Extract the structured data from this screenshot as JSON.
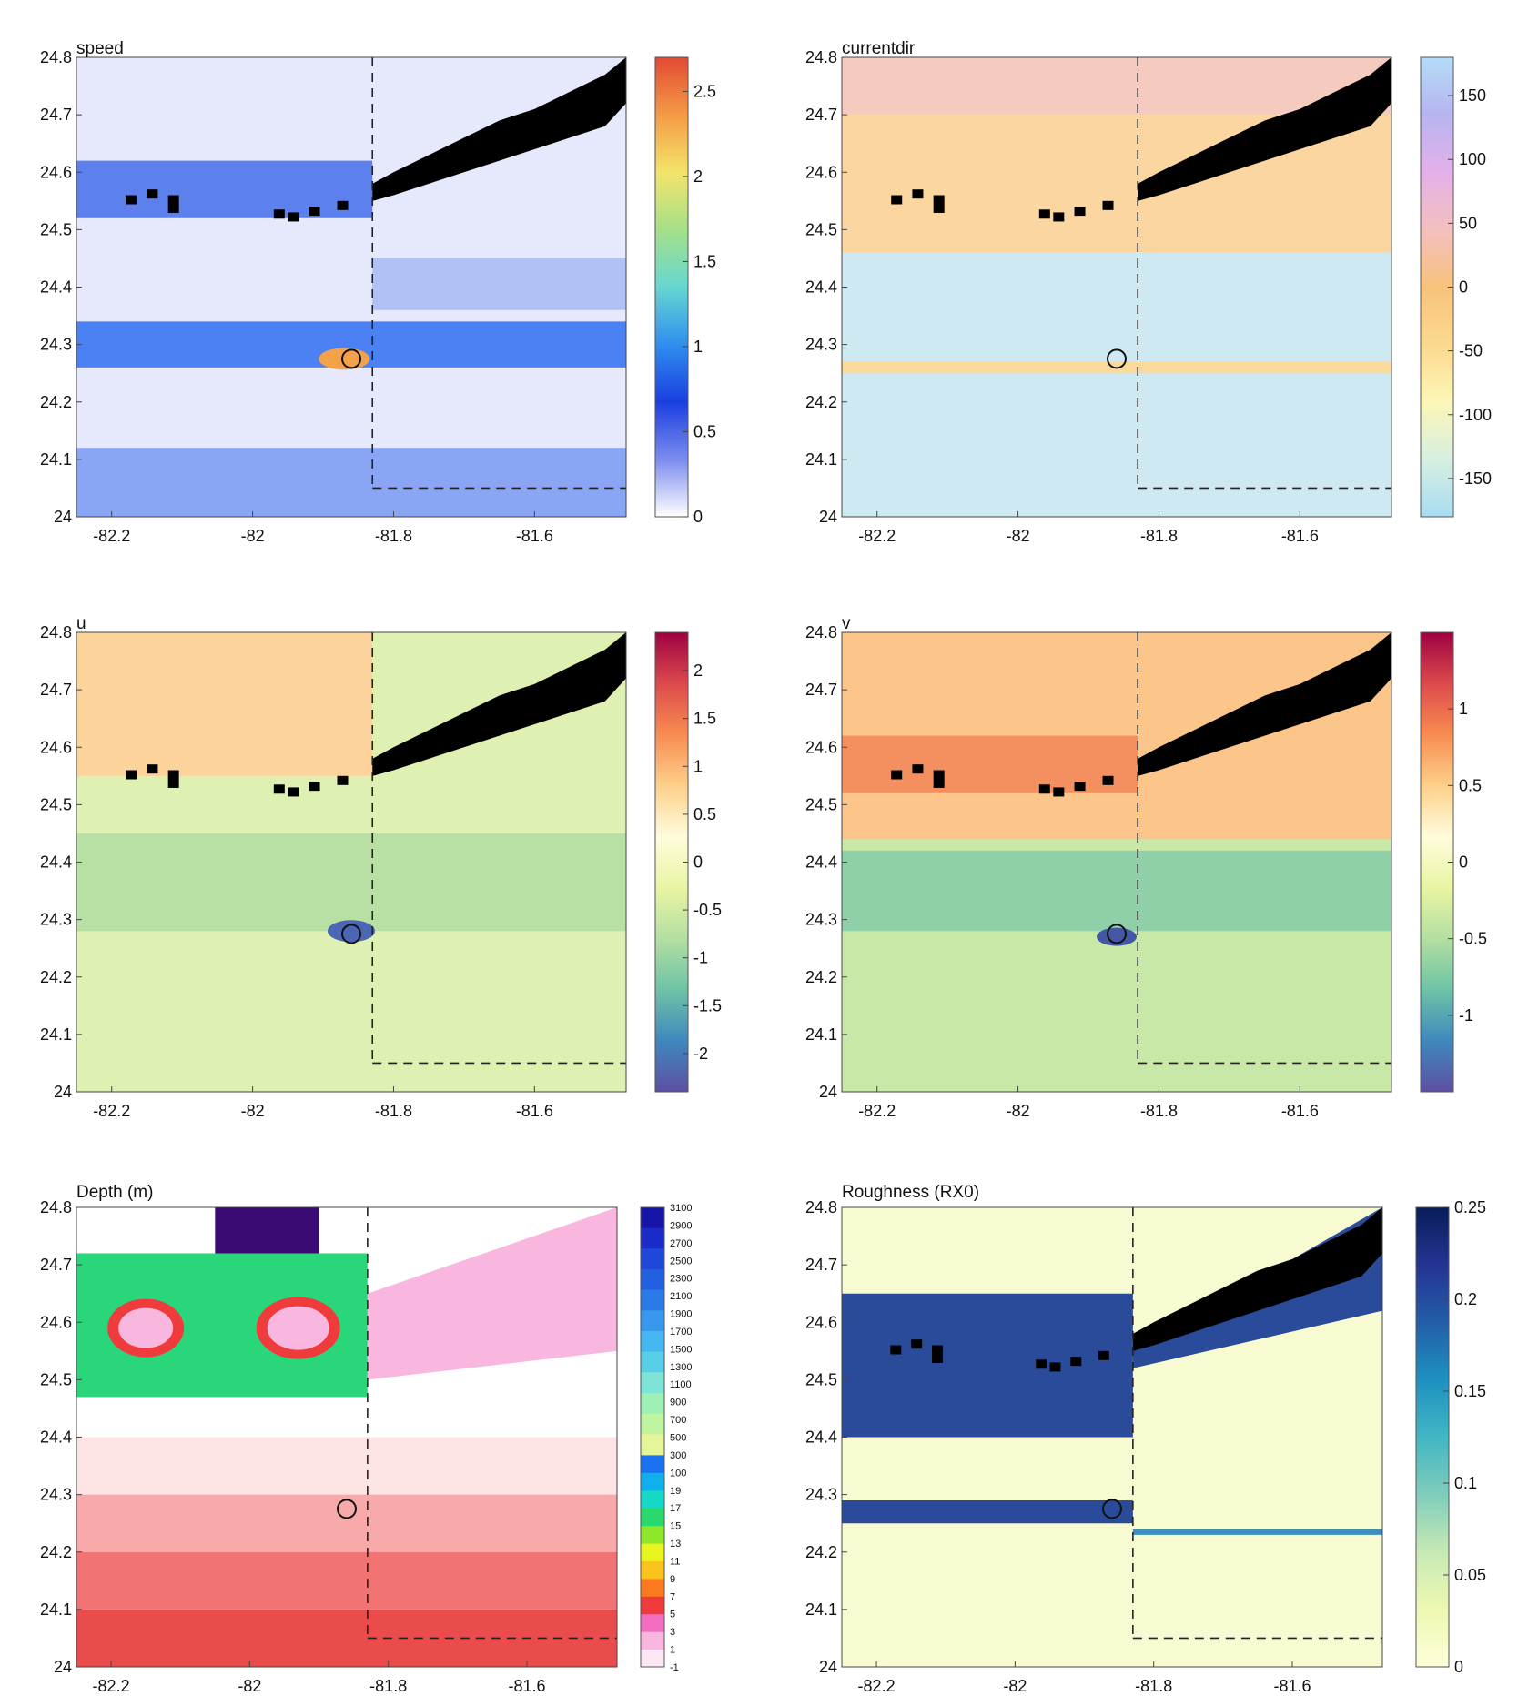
{
  "figure": {
    "x_ticks": [
      "-82.2",
      "-82",
      "-81.8",
      "-81.6"
    ],
    "x_tick_values": [
      -82.2,
      -82.0,
      -81.8,
      -81.6
    ],
    "y_ticks": [
      "24",
      "24.1",
      "24.2",
      "24.3",
      "24.4",
      "24.5",
      "24.6",
      "24.7",
      "24.8"
    ],
    "y_tick_values": [
      24.0,
      24.1,
      24.2,
      24.3,
      24.4,
      24.5,
      24.6,
      24.7,
      24.8
    ],
    "xlim": [
      -82.25,
      -81.47
    ],
    "ylim": [
      24.0,
      24.8
    ],
    "marker": {
      "lon": -81.86,
      "lat": 24.275,
      "shape": "circle"
    },
    "nest_boundary": {
      "lon": -81.83,
      "lat": 24.05,
      "style": "dashed"
    },
    "land_color": "#000000"
  },
  "chart_data": [
    {
      "type": "heatmap",
      "title": "speed",
      "colorbar": {
        "min": 0,
        "max": 2.7,
        "ticks": [
          "0",
          "0.5",
          "1",
          "1.5",
          "2",
          "2.5"
        ],
        "tick_values": [
          0,
          0.5,
          1,
          1.5,
          2,
          2.5
        ],
        "colors": [
          "#ffffff",
          "#7b8bee",
          "#1a3fe0",
          "#2f8fef",
          "#66d7d0",
          "#a5e088",
          "#f3e46a",
          "#f49a45",
          "#e24a33"
        ]
      }
    },
    {
      "type": "heatmap",
      "title": "currentdir",
      "colorbar": {
        "min": -180,
        "max": 180,
        "ticks": [
          "-150",
          "-100",
          "-50",
          "0",
          "50",
          "100",
          "150"
        ],
        "tick_values": [
          -150,
          -100,
          -50,
          0,
          50,
          100,
          150
        ],
        "colors": [
          "#a8dcf2",
          "#d6efe0",
          "#fdf6b8",
          "#fbd98f",
          "#f8c27b",
          "#f3c0bf",
          "#e4b0e8",
          "#b7b4f0",
          "#b4dcf7"
        ]
      }
    },
    {
      "type": "heatmap",
      "title": "u",
      "colorbar": {
        "min": -2.4,
        "max": 2.4,
        "ticks": [
          "-2",
          "-1.5",
          "-1",
          "-0.5",
          "0",
          "0.5",
          "1",
          "1.5",
          "2"
        ],
        "tick_values": [
          -2,
          -1.5,
          -1,
          -0.5,
          0,
          0.5,
          1,
          1.5,
          2
        ],
        "colors": [
          "#5e4fa2",
          "#3f88be",
          "#6ec3a6",
          "#b3dfa1",
          "#e9f5a3",
          "#fffcdc",
          "#fdd08a",
          "#f88c51",
          "#dc4a4c",
          "#9e0142"
        ]
      }
    },
    {
      "type": "heatmap",
      "title": "v",
      "colorbar": {
        "min": -1.5,
        "max": 1.5,
        "ticks": [
          "-1",
          "-0.5",
          "0",
          "0.5",
          "1"
        ],
        "tick_values": [
          -1,
          -0.5,
          0,
          0.5,
          1
        ],
        "colors": [
          "#5e4fa2",
          "#3f88be",
          "#6ec3a6",
          "#b3dfa1",
          "#e9f5a3",
          "#fffcdc",
          "#fdd08a",
          "#f88c51",
          "#dc4a4c",
          "#9e0142"
        ]
      }
    },
    {
      "type": "heatmap",
      "title": "Depth (m)",
      "colorbar": {
        "ticks": [
          "-1",
          "1",
          "3",
          "5",
          "7",
          "9",
          "11",
          "13",
          "15",
          "17",
          "19",
          "100",
          "300",
          "500",
          "700",
          "900",
          "1100",
          "1300",
          "1500",
          "1700",
          "1900",
          "2100",
          "2300",
          "2500",
          "2700",
          "2900",
          "3100"
        ],
        "colors": [
          "#fde7f5",
          "#f9b6df",
          "#f36ec0",
          "#ef3b3b",
          "#fb7a1f",
          "#fbc41d",
          "#e8f51f",
          "#8fe72b",
          "#29d96d",
          "#15d9c6",
          "#0fb0ec",
          "#1a72f0",
          "#1f3fe0",
          "#1b1bb8",
          "#3a0b73",
          "#ffffff",
          "#fde3e3",
          "#fbc5c5",
          "#f9a5a5",
          "#f68888",
          "#f26a6a",
          "#ef5454",
          "#eb4343",
          "#e83a3a",
          "#e33131",
          "#de2a2a",
          "#d82424"
        ],
        "blue_top": [
          "#1515a8",
          "#1b2bc8",
          "#1f47d8",
          "#2360e0",
          "#2c7ae8",
          "#3898ee",
          "#45b6ef",
          "#58cfe8",
          "#7de4d6",
          "#9ff0b7",
          "#bff4a0",
          "#e5f59a"
        ]
      }
    },
    {
      "type": "heatmap",
      "title": "Roughness (RX0)",
      "colorbar": {
        "min": 0,
        "max": 0.25,
        "ticks": [
          "0",
          "0.05",
          "0.1",
          "0.15",
          "0.2",
          "0.25"
        ],
        "tick_values": [
          0,
          0.05,
          0.1,
          0.15,
          0.2,
          0.25
        ],
        "colors": [
          "#ffffd9",
          "#edf8b1",
          "#c7e9b4",
          "#7fcdbb",
          "#41b6c4",
          "#1d91c0",
          "#225ea8",
          "#253494",
          "#081d58"
        ]
      }
    }
  ]
}
